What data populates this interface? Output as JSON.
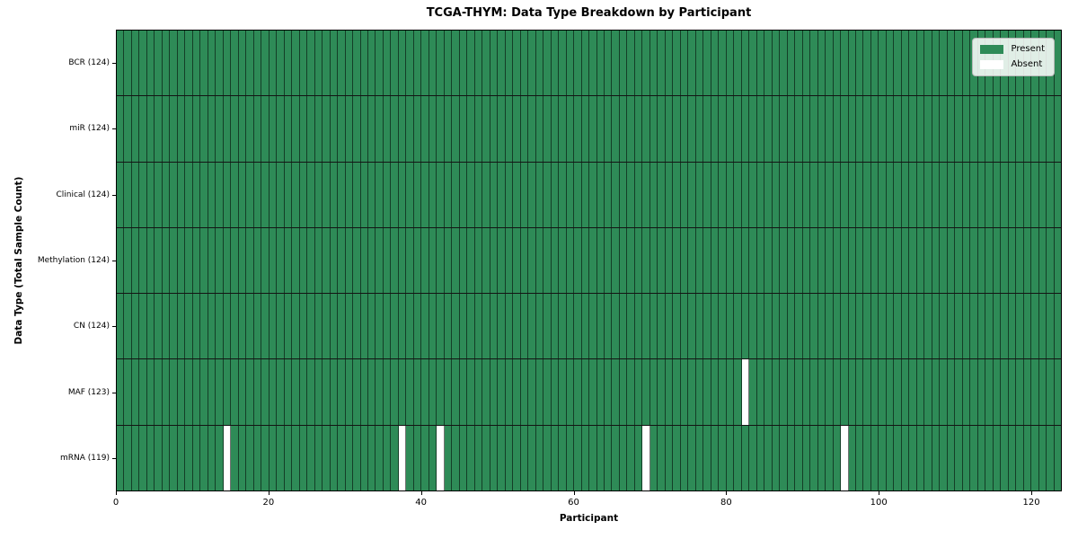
{
  "chart_data": {
    "type": "heatmap",
    "title": "TCGA-THYM: Data Type Breakdown by Participant",
    "xlabel": "Participant",
    "ylabel": "Data Type (Total Sample Count)",
    "n_participants": 124,
    "xlim": [
      0,
      124
    ],
    "x_ticks": [
      0,
      20,
      40,
      60,
      80,
      100,
      120
    ],
    "legend": {
      "position": "upper right",
      "entries": [
        {
          "label": "Present",
          "color": "#2e8b57"
        },
        {
          "label": "Absent",
          "color": "#ffffff"
        }
      ]
    },
    "rows": [
      {
        "label": "BCR (124)",
        "data_type": "BCR",
        "present_count": 124,
        "absent_participants": []
      },
      {
        "label": "miR (124)",
        "data_type": "miR",
        "present_count": 124,
        "absent_participants": []
      },
      {
        "label": "Clinical (124)",
        "data_type": "Clinical",
        "present_count": 124,
        "absent_participants": []
      },
      {
        "label": "Methylation (124)",
        "data_type": "Methylation",
        "present_count": 124,
        "absent_participants": []
      },
      {
        "label": "CN (124)",
        "data_type": "CN",
        "present_count": 124,
        "absent_participants": []
      },
      {
        "label": "MAF (123)",
        "data_type": "MAF",
        "present_count": 123,
        "absent_participants": [
          82
        ]
      },
      {
        "label": "mRNA (119)",
        "data_type": "mRNA",
        "present_count": 119,
        "absent_participants": [
          14,
          37,
          42,
          69,
          95
        ]
      }
    ],
    "colors": {
      "present": "#2e8b57",
      "absent": "#ffffff",
      "grid_line": "#1a1a1a",
      "background": "#ffffff"
    }
  }
}
